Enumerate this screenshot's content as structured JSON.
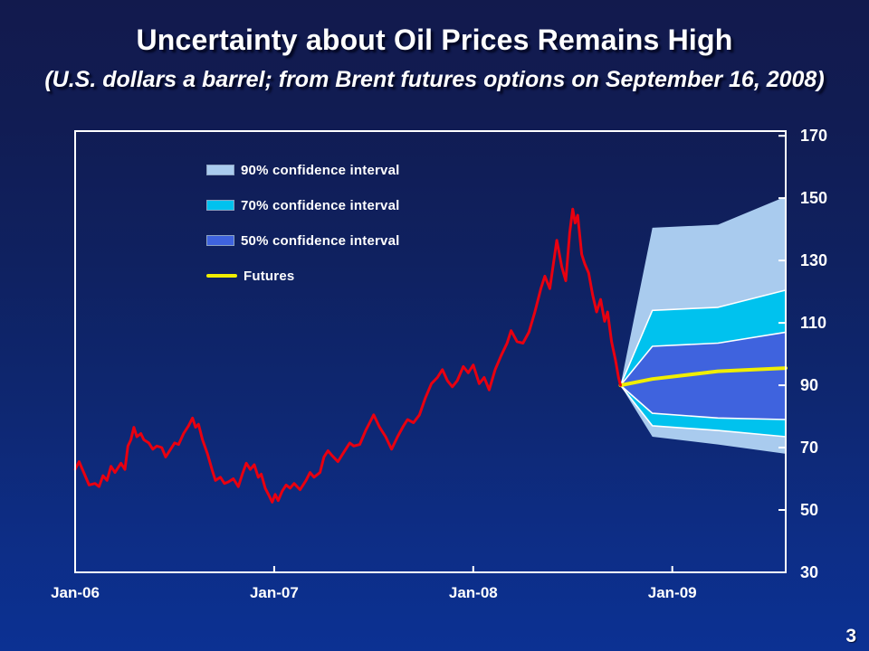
{
  "slide": {
    "title": "Uncertainty about Oil Prices Remains High",
    "subtitle": "(U.S. dollars a barrel; from Brent futures options on September 16, 2008)",
    "page_number": "3"
  },
  "legend": {
    "items": [
      {
        "label": "90% confidence interval",
        "color": "#a9cbee",
        "type": "box"
      },
      {
        "label": "70% confidence interval",
        "color": "#00c2ee",
        "type": "box"
      },
      {
        "label": "50% confidence interval",
        "color": "#3f63de",
        "type": "box"
      },
      {
        "label": "Futures",
        "color": "#f0ee00",
        "type": "line"
      }
    ]
  },
  "chart_data": {
    "type": "line",
    "title": "Uncertainty about Oil Prices Remains High",
    "subtitle": "(U.S. dollars a barrel; from Brent futures options on September 16, 2008)",
    "units": "U.S. dollars a barrel",
    "x_axis": {
      "note": "t = years since Jan-2006",
      "range": [
        0,
        3.57
      ],
      "ticks": [
        {
          "label": "Jan-06",
          "t": 0
        },
        {
          "label": "Jan-07",
          "t": 1
        },
        {
          "label": "Jan-08",
          "t": 2
        },
        {
          "label": "Jan-09",
          "t": 3
        }
      ]
    },
    "y_axis": {
      "range": [
        30,
        171.5
      ],
      "ticks": [
        30,
        50,
        70,
        90,
        110,
        130,
        150,
        170
      ],
      "side": "right"
    },
    "colors": {
      "history_line": "#e80010",
      "futures_line": "#f0ee00",
      "band_90": "#a9cbee",
      "band_70": "#00c2ee",
      "band_50": "#3f63de",
      "band_separator": "#ffffff",
      "frame": "#ffffff",
      "background_top": "#121a4d",
      "background_bottom": "#0c3193"
    },
    "history": {
      "name": "Brent spot price (historical)",
      "points": [
        [
          0.0,
          63
        ],
        [
          0.02,
          65.5
        ],
        [
          0.04,
          62.5
        ],
        [
          0.07,
          58
        ],
        [
          0.1,
          58.5
        ],
        [
          0.12,
          57.5
        ],
        [
          0.14,
          61
        ],
        [
          0.16,
          59.5
        ],
        [
          0.18,
          64
        ],
        [
          0.2,
          62
        ],
        [
          0.23,
          65
        ],
        [
          0.25,
          63
        ],
        [
          0.265,
          70.5
        ],
        [
          0.28,
          72.5
        ],
        [
          0.295,
          76.5
        ],
        [
          0.31,
          73.5
        ],
        [
          0.33,
          74.5
        ],
        [
          0.345,
          72.5
        ],
        [
          0.37,
          71.5
        ],
        [
          0.39,
          69.5
        ],
        [
          0.41,
          70.5
        ],
        [
          0.435,
          70
        ],
        [
          0.455,
          67
        ],
        [
          0.48,
          69.5
        ],
        [
          0.5,
          71.5
        ],
        [
          0.52,
          71
        ],
        [
          0.545,
          74.5
        ],
        [
          0.57,
          77
        ],
        [
          0.59,
          79.5
        ],
        [
          0.605,
          76.5
        ],
        [
          0.62,
          77.5
        ],
        [
          0.64,
          72.5
        ],
        [
          0.665,
          68
        ],
        [
          0.69,
          62.5
        ],
        [
          0.705,
          59.5
        ],
        [
          0.73,
          60.5
        ],
        [
          0.75,
          58.5
        ],
        [
          0.77,
          59
        ],
        [
          0.795,
          60
        ],
        [
          0.82,
          57.5
        ],
        [
          0.84,
          61.5
        ],
        [
          0.86,
          65
        ],
        [
          0.88,
          63
        ],
        [
          0.9,
          64.5
        ],
        [
          0.92,
          60.5
        ],
        [
          0.935,
          61.5
        ],
        [
          0.955,
          57
        ],
        [
          0.975,
          54.5
        ],
        [
          0.99,
          52.5
        ],
        [
          1.005,
          55
        ],
        [
          1.02,
          53
        ],
        [
          1.04,
          56
        ],
        [
          1.06,
          58
        ],
        [
          1.08,
          57
        ],
        [
          1.1,
          58.5
        ],
        [
          1.13,
          56.5
        ],
        [
          1.16,
          59.5
        ],
        [
          1.18,
          62
        ],
        [
          1.2,
          60.5
        ],
        [
          1.23,
          62
        ],
        [
          1.25,
          67
        ],
        [
          1.27,
          69
        ],
        [
          1.29,
          67.5
        ],
        [
          1.32,
          65.5
        ],
        [
          1.35,
          68.5
        ],
        [
          1.38,
          71.5
        ],
        [
          1.4,
          70.5
        ],
        [
          1.43,
          71
        ],
        [
          1.46,
          75.5
        ],
        [
          1.48,
          78
        ],
        [
          1.5,
          80.5
        ],
        [
          1.53,
          76.5
        ],
        [
          1.56,
          73.5
        ],
        [
          1.59,
          69.5
        ],
        [
          1.62,
          73.5
        ],
        [
          1.65,
          77
        ],
        [
          1.67,
          79
        ],
        [
          1.7,
          78
        ],
        [
          1.73,
          80.5
        ],
        [
          1.76,
          86
        ],
        [
          1.79,
          90.5
        ],
        [
          1.82,
          92.5
        ],
        [
          1.845,
          95
        ],
        [
          1.87,
          91.5
        ],
        [
          1.895,
          89.5
        ],
        [
          1.92,
          91.5
        ],
        [
          1.95,
          96
        ],
        [
          1.975,
          94
        ],
        [
          2.0,
          96.5
        ],
        [
          2.03,
          90.5
        ],
        [
          2.055,
          92.5
        ],
        [
          2.08,
          88.5
        ],
        [
          2.11,
          95
        ],
        [
          2.14,
          99.5
        ],
        [
          2.17,
          103.5
        ],
        [
          2.19,
          107.5
        ],
        [
          2.22,
          104
        ],
        [
          2.25,
          103.5
        ],
        [
          2.28,
          107
        ],
        [
          2.31,
          113.5
        ],
        [
          2.34,
          121
        ],
        [
          2.36,
          125
        ],
        [
          2.385,
          121
        ],
        [
          2.42,
          136.5
        ],
        [
          2.445,
          128
        ],
        [
          2.465,
          123.5
        ],
        [
          2.485,
          139
        ],
        [
          2.5,
          146.5
        ],
        [
          2.512,
          142
        ],
        [
          2.525,
          144.5
        ],
        [
          2.545,
          132
        ],
        [
          2.56,
          129
        ],
        [
          2.58,
          126
        ],
        [
          2.6,
          119
        ],
        [
          2.62,
          113.5
        ],
        [
          2.64,
          117.5
        ],
        [
          2.66,
          110.5
        ],
        [
          2.675,
          113.5
        ],
        [
          2.695,
          104
        ],
        [
          2.715,
          98
        ],
        [
          2.73,
          92.5
        ],
        [
          2.74,
          90
        ]
      ]
    },
    "futures": {
      "name": "Futures",
      "points": [
        [
          2.74,
          90
        ],
        [
          2.9,
          92
        ],
        [
          3.23,
          94.5
        ],
        [
          3.57,
          95.5
        ]
      ]
    },
    "bands": [
      {
        "name": "90% confidence interval",
        "color": "#a9cbee",
        "stroke": "none",
        "upper": [
          [
            2.74,
            90
          ],
          [
            2.9,
            140.5
          ],
          [
            3.23,
            141.5
          ],
          [
            3.57,
            150.5
          ]
        ],
        "lower": [
          [
            2.74,
            90
          ],
          [
            2.9,
            73.5
          ],
          [
            3.23,
            71
          ],
          [
            3.57,
            68
          ]
        ]
      },
      {
        "name": "70% confidence interval",
        "color": "#00c2ee",
        "stroke": "#ffffff",
        "upper": [
          [
            2.74,
            90
          ],
          [
            2.9,
            114
          ],
          [
            3.23,
            115
          ],
          [
            3.57,
            120.5
          ]
        ],
        "lower": [
          [
            2.74,
            90
          ],
          [
            2.9,
            77
          ],
          [
            3.23,
            75.5
          ],
          [
            3.57,
            73.5
          ]
        ]
      },
      {
        "name": "50% confidence interval",
        "color": "#3f63de",
        "stroke": "#ffffff",
        "upper": [
          [
            2.74,
            90
          ],
          [
            2.9,
            102.5
          ],
          [
            3.23,
            103.5
          ],
          [
            3.57,
            107
          ]
        ],
        "lower": [
          [
            2.74,
            90
          ],
          [
            2.9,
            81
          ],
          [
            3.23,
            79.5
          ],
          [
            3.57,
            79
          ]
        ]
      }
    ]
  }
}
